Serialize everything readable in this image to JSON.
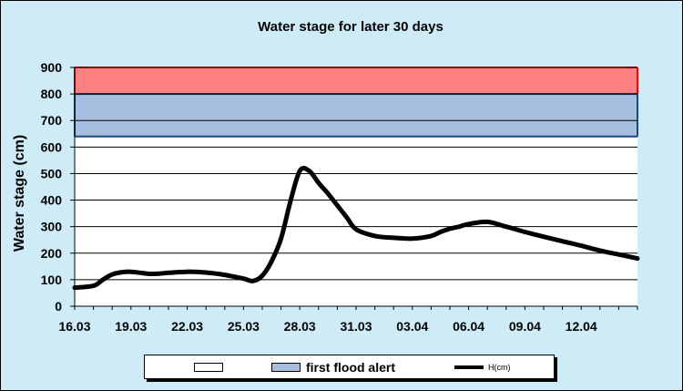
{
  "chart_data": {
    "type": "line",
    "title": "Water stage for later 30 days",
    "xlabel": "",
    "ylabel": "Water stage (cm)",
    "ylim": [
      0,
      900
    ],
    "yticks": [
      0,
      100,
      200,
      300,
      400,
      500,
      600,
      700,
      800,
      900
    ],
    "xlim": [
      0,
      30
    ],
    "xtick_labels": [
      "16.03",
      "19.03",
      "22.03",
      "25.03",
      "28.03",
      "31.03",
      "03.04",
      "06.04",
      "09.04",
      "12.04"
    ],
    "grid": true,
    "legend_position": "bottom",
    "bands": [
      {
        "name": "",
        "from": 800,
        "to": 900,
        "color": "#ff8080",
        "edge_color": "#ff0000"
      },
      {
        "name": "first flood alert",
        "from": 640,
        "to": 800,
        "color": "#a6bfe0",
        "edge_color": "#1f497d"
      }
    ],
    "series": [
      {
        "name": "H(cm)",
        "color": "#000000",
        "x": [
          0,
          1,
          1.5,
          2,
          2.5,
          3,
          3.5,
          4,
          4.5,
          5,
          6,
          7,
          8,
          9,
          9.5,
          10,
          10.5,
          11,
          11.5,
          12,
          12.5,
          13,
          13.5,
          14,
          14.5,
          15,
          16,
          17,
          18,
          19,
          19.5,
          20,
          20.5,
          21,
          22,
          23,
          24,
          25,
          26,
          27,
          28,
          29,
          30
        ],
        "y": [
          70,
          77,
          100,
          120,
          128,
          130,
          126,
          122,
          123,
          126,
          130,
          127,
          118,
          104,
          95,
          115,
          170,
          255,
          395,
          510,
          510,
          465,
          425,
          380,
          335,
          290,
          265,
          258,
          255,
          265,
          280,
          292,
          300,
          310,
          318,
          300,
          280,
          262,
          245,
          228,
          210,
          195,
          180
        ]
      }
    ]
  }
}
